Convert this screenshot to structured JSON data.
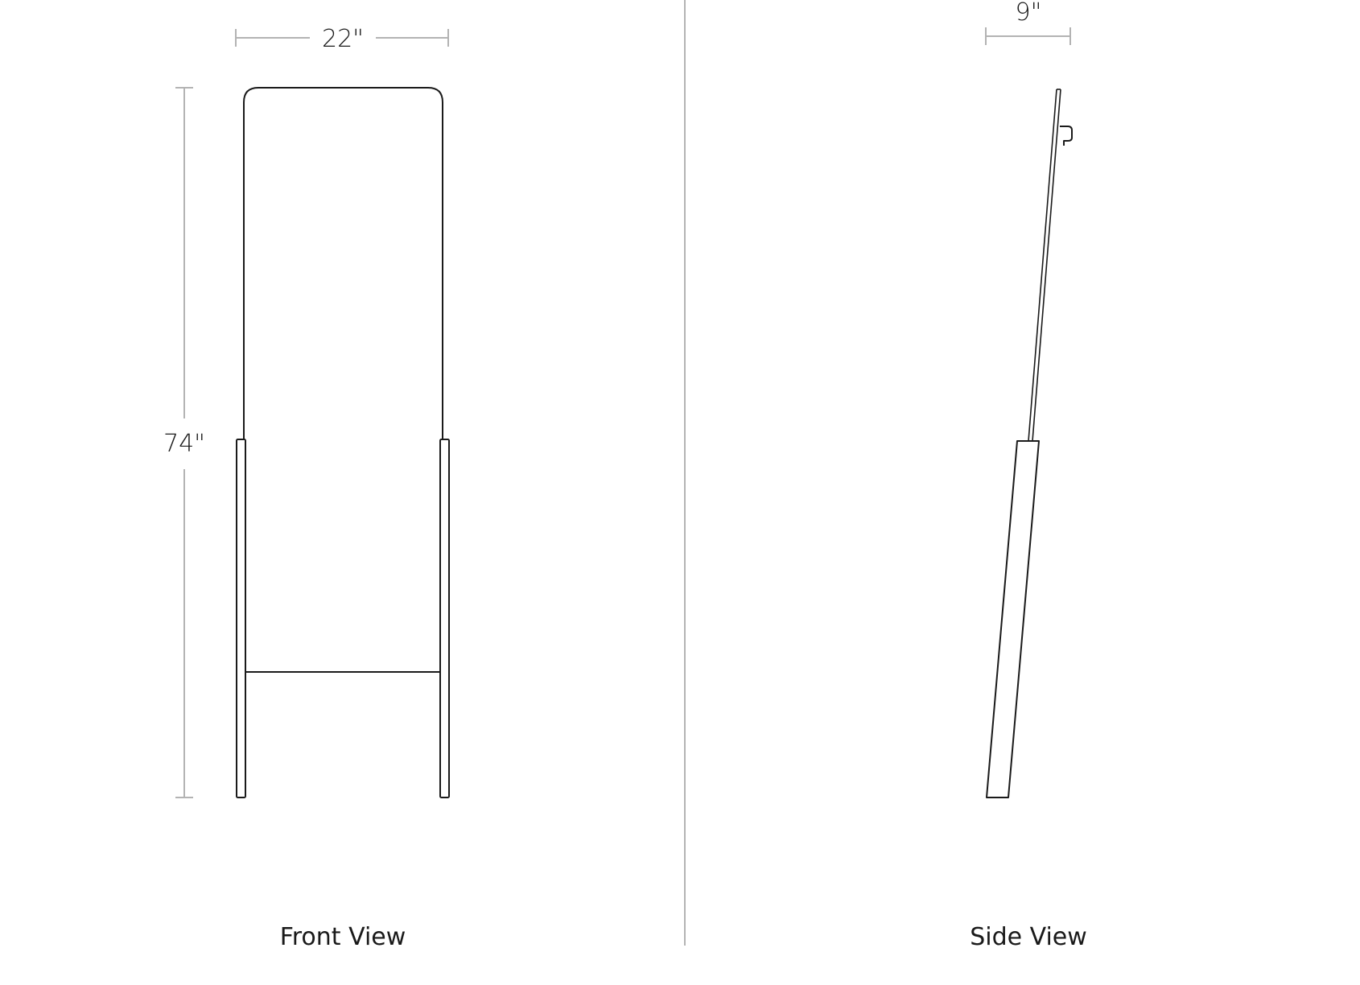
{
  "front_view": {
    "caption": "Front View",
    "width_dimension": "22\"",
    "height_dimension": "74\""
  },
  "side_view": {
    "caption": "Side View",
    "depth_dimension": "9\""
  },
  "colors": {
    "line": "#1a1a1a",
    "dimension": "#b3b3b3",
    "background": "#ffffff"
  }
}
